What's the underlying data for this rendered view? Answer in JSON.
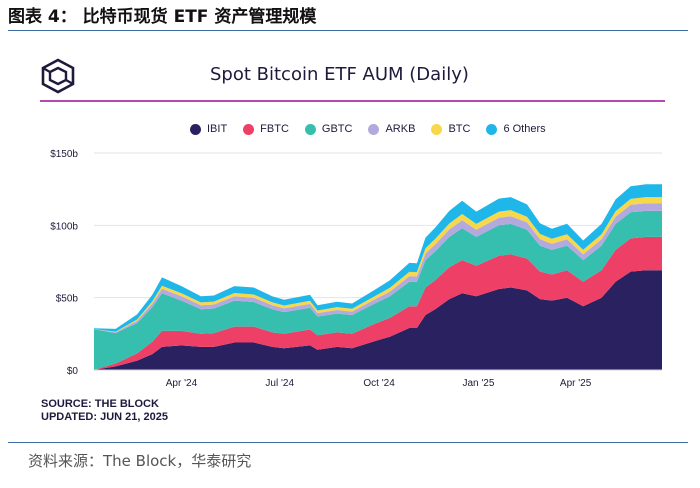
{
  "figure_caption": "图表 4： 比特币现货 ETF 资产管理规模",
  "footnote": "资料来源：The Block，华泰研究",
  "source_line1": "SOURCE: THE BLOCK",
  "source_line2": "UPDATED: JUN 21, 2025",
  "colors": {
    "IBIT": "#2a2160",
    "FBTC": "#ee3f66",
    "GBTC": "#36bfae",
    "ARKB": "#b4a9df",
    "BTC": "#f6d84a",
    "6 Others": "#1fb7ea",
    "accent_rule": "#b24bb0"
  },
  "logo_icon": "the-block-cube-logo",
  "chart_data": {
    "type": "area",
    "stacked": true,
    "title": "Spot Bitcoin ETF AUM (Daily)",
    "xlabel": "",
    "ylabel": "",
    "ylim": [
      0,
      150
    ],
    "y_ticks": [
      "$0",
      "$50b",
      "$100b",
      "$150b"
    ],
    "y_tick_values": [
      0,
      50,
      100,
      150
    ],
    "x_ticks": [
      "Apr '24",
      "Jul '24",
      "Oct '24",
      "Jan '25",
      "Apr '25"
    ],
    "x_tick_dates": [
      "2024-04-01",
      "2024-07-01",
      "2024-10-01",
      "2025-01-01",
      "2025-04-01"
    ],
    "x_range": [
      "2024-01-11",
      "2025-06-20"
    ],
    "grid": "horizontal",
    "legend_position": "top",
    "x": [
      "2024-01-11",
      "2024-01-31",
      "2024-02-20",
      "2024-03-05",
      "2024-03-14",
      "2024-04-01",
      "2024-04-19",
      "2024-05-01",
      "2024-05-20",
      "2024-06-07",
      "2024-06-24",
      "2024-07-05",
      "2024-07-29",
      "2024-08-05",
      "2024-08-23",
      "2024-09-06",
      "2024-09-27",
      "2024-10-11",
      "2024-10-29",
      "2024-11-05",
      "2024-11-13",
      "2024-11-22",
      "2024-12-05",
      "2024-12-17",
      "2024-12-30",
      "2025-01-20",
      "2025-01-31",
      "2025-02-15",
      "2025-02-27",
      "2025-03-10",
      "2025-03-24",
      "2025-04-08",
      "2025-04-25",
      "2025-05-08",
      "2025-05-22",
      "2025-06-05",
      "2025-06-20"
    ],
    "series": [
      {
        "name": "IBIT",
        "values": [
          0.1,
          2.5,
          6.5,
          11,
          16,
          17,
          16,
          16,
          19,
          19,
          16,
          15,
          17,
          14,
          16,
          15,
          20,
          23,
          29,
          29,
          38,
          42,
          49,
          53,
          51,
          56,
          57,
          55,
          49,
          48,
          50,
          44,
          50,
          61,
          68,
          69,
          69
        ]
      },
      {
        "name": "FBTC",
        "values": [
          0.1,
          2.0,
          5.0,
          8.5,
          11,
          10,
          9,
          9.5,
          11,
          11,
          10,
          10,
          11,
          10,
          10,
          10,
          12,
          13,
          15,
          15,
          19,
          20,
          22,
          23,
          21,
          23,
          23,
          22,
          19,
          18,
          19,
          17,
          19,
          22,
          23,
          23,
          23
        ]
      },
      {
        "name": "GBTC",
        "values": [
          28,
          21,
          21,
          24,
          26,
          21,
          17,
          17,
          18,
          17,
          16,
          15,
          15,
          13,
          13,
          13,
          14,
          15,
          17,
          17,
          19,
          20,
          21,
          22,
          20,
          21,
          21,
          20,
          18,
          17,
          17,
          15,
          17,
          18,
          18,
          18,
          18
        ]
      },
      {
        "name": "ARKB",
        "values": [
          0.1,
          0.6,
          1.5,
          2.4,
          3.2,
          3.0,
          2.7,
          2.8,
          3.0,
          3.0,
          2.7,
          2.6,
          2.7,
          2.3,
          2.5,
          2.4,
          2.8,
          3.2,
          3.8,
          3.7,
          4.5,
          4.8,
          5.2,
          5.5,
          5.0,
          5.3,
          5.3,
          5.0,
          4.5,
          4.3,
          4.4,
          3.9,
          4.4,
          4.9,
          5.2,
          5.3,
          5.3
        ]
      },
      {
        "name": "BTC",
        "values": [
          0,
          0.3,
          1.0,
          1.5,
          2.0,
          2.0,
          2.0,
          2.0,
          2.2,
          2.2,
          2.1,
          2.0,
          2.1,
          1.8,
          2.0,
          2.0,
          2.3,
          2.6,
          3.0,
          3.0,
          3.6,
          3.8,
          4.1,
          4.3,
          4.0,
          4.2,
          4.2,
          4.0,
          3.6,
          3.4,
          3.5,
          3.2,
          3.5,
          3.9,
          4.1,
          4.2,
          4.2
        ]
      },
      {
        "name": "6 Others",
        "values": [
          0.5,
          2.0,
          3.5,
          4.6,
          5.8,
          5.0,
          4.3,
          4.2,
          4.8,
          4.8,
          4.2,
          4.0,
          4.2,
          3.6,
          3.7,
          3.6,
          4.4,
          5.2,
          6.2,
          6.1,
          7.4,
          7.8,
          8.7,
          9.2,
          8.5,
          9.0,
          9.0,
          8.5,
          7.4,
          7.0,
          7.2,
          6.4,
          7.1,
          8.1,
          8.7,
          8.9,
          8.9
        ]
      }
    ]
  }
}
